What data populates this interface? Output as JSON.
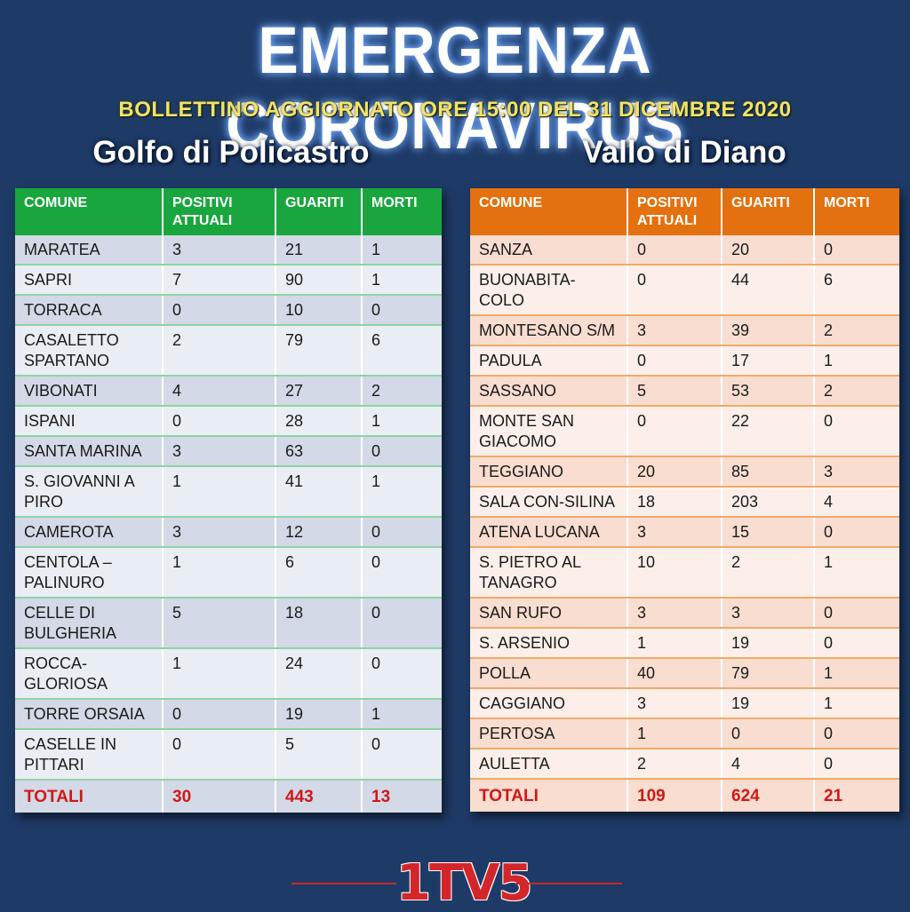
{
  "header": {
    "title": "EMERGENZA CORONAVIRUS",
    "subtitle": "BOLLETTINO AGGIORNATO ORE 15:00 DEL 31 DICEMBRE 2020"
  },
  "columns": {
    "comune": "COMUNE",
    "positivi": "POSITIVI ATTUALI",
    "guariti": "GUARITI",
    "morti": "MORTI"
  },
  "left": {
    "title": "Golfo di Policastro",
    "accent": "#1aa63f",
    "rows": [
      {
        "comune": "MARATEA",
        "positivi": "3",
        "guariti": "21",
        "morti": "1"
      },
      {
        "comune": "SAPRI",
        "positivi": "7",
        "guariti": "90",
        "morti": "1"
      },
      {
        "comune": "TORRACA",
        "positivi": "0",
        "guariti": "10",
        "morti": "0"
      },
      {
        "comune": "CASALETTO SPARTANO",
        "positivi": "2",
        "guariti": "79",
        "morti": "6"
      },
      {
        "comune": "VIBONATI",
        "positivi": "4",
        "guariti": "27",
        "morti": "2"
      },
      {
        "comune": "ISPANI",
        "positivi": "0",
        "guariti": "28",
        "morti": "1"
      },
      {
        "comune": "SANTA MARINA",
        "positivi": "3",
        "guariti": "63",
        "morti": "0"
      },
      {
        "comune": "S. GIOVANNI A PIRO",
        "positivi": "1",
        "guariti": "41",
        "morti": "1"
      },
      {
        "comune": "CAMEROTA",
        "positivi": "3",
        "guariti": "12",
        "morti": "0"
      },
      {
        "comune": "CENTOLA – PALINURO",
        "positivi": "1",
        "guariti": "6",
        "morti": "0"
      },
      {
        "comune": "CELLE DI BULGHERIA",
        "positivi": "5",
        "guariti": "18",
        "morti": "0"
      },
      {
        "comune": "ROCCA-GLORIOSA",
        "positivi": "1",
        "guariti": "24",
        "morti": "0"
      },
      {
        "comune": "TORRE ORSAIA",
        "positivi": "0",
        "guariti": "19",
        "morti": "1"
      },
      {
        "comune": "CASELLE IN PITTARI",
        "positivi": "0",
        "guariti": "5",
        "morti": "0"
      }
    ],
    "totals": {
      "label": "TOTALI",
      "positivi": "30",
      "guariti": "443",
      "morti": "13"
    }
  },
  "right": {
    "title": "Vallo di Diano",
    "accent": "#e3710f",
    "rows": [
      {
        "comune": "SANZA",
        "positivi": "0",
        "guariti": "20",
        "morti": "0"
      },
      {
        "comune": "BUONABITA-COLO",
        "positivi": "0",
        "guariti": "44",
        "morti": "6"
      },
      {
        "comune": "MONTESANO S/M",
        "positivi": "3",
        "guariti": "39",
        "morti": "2"
      },
      {
        "comune": "PADULA",
        "positivi": "0",
        "guariti": "17",
        "morti": "1"
      },
      {
        "comune": "SASSANO",
        "positivi": "5",
        "guariti": "53",
        "morti": "2"
      },
      {
        "comune": "MONTE SAN GIACOMO",
        "positivi": "0",
        "guariti": "22",
        "morti": "0"
      },
      {
        "comune": "TEGGIANO",
        "positivi": "20",
        "guariti": "85",
        "morti": "3"
      },
      {
        "comune": "SALA CON-SILINA",
        "positivi": "18",
        "guariti": "203",
        "morti": "4"
      },
      {
        "comune": "ATENA LUCANA",
        "positivi": "3",
        "guariti": "15",
        "morti": "0"
      },
      {
        "comune": "S. PIETRO AL TANAGRO",
        "positivi": "10",
        "guariti": "2",
        "morti": "1"
      },
      {
        "comune": "SAN RUFO",
        "positivi": "3",
        "guariti": "3",
        "morti": "0"
      },
      {
        "comune": "S. ARSENIO",
        "positivi": "1",
        "guariti": "19",
        "morti": "0"
      },
      {
        "comune": "POLLA",
        "positivi": "40",
        "guariti": "79",
        "morti": "1"
      },
      {
        "comune": "CAGGIANO",
        "positivi": "3",
        "guariti": "19",
        "morti": "1"
      },
      {
        "comune": "PERTOSA",
        "positivi": "1",
        "guariti": "0",
        "morti": "0"
      },
      {
        "comune": "AULETTA",
        "positivi": "2",
        "guariti": "4",
        "morti": "0"
      }
    ],
    "totals": {
      "label": "TOTALI",
      "positivi": "109",
      "guariti": "624",
      "morti": "21"
    }
  },
  "logo": {
    "text": "1TV5"
  }
}
